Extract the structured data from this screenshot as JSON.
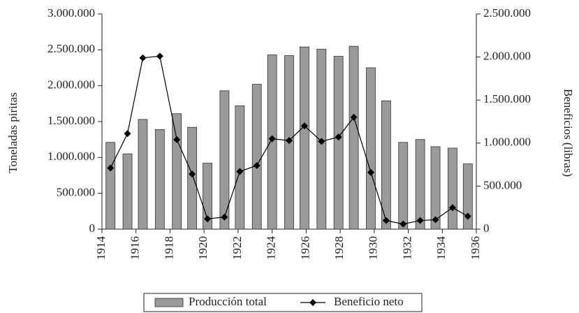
{
  "chart_data": {
    "type": "bar-line",
    "ylabel": "Toneladas piritas",
    "y2label": "Beneficios (libras)",
    "x": [
      1914.5,
      1915.5,
      1916.4,
      1917.4,
      1918.4,
      1919.3,
      1920.2,
      1921.2,
      1922.1,
      1923.1,
      1924.0,
      1925.0,
      1925.9,
      1926.9,
      1927.9,
      1928.8,
      1929.8,
      1930.7,
      1931.7,
      1932.7,
      1933.6,
      1934.6,
      1935.5
    ],
    "series": [
      {
        "name": "Producción total",
        "type": "bar",
        "color": "#9a9a9a",
        "values": [
          1210000,
          1050000,
          1530000,
          1390000,
          1610000,
          1420000,
          920000,
          1930000,
          1720000,
          2020000,
          2430000,
          2420000,
          2540000,
          2510000,
          2410000,
          2550000,
          2250000,
          1790000,
          1210000,
          1250000,
          1150000,
          1130000,
          910000
        ]
      },
      {
        "name": "Beneficio neto",
        "type": "line",
        "axis": "y2",
        "color": "#000000",
        "values": [
          710000,
          1110000,
          1990000,
          2010000,
          1040000,
          640000,
          120000,
          140000,
          670000,
          740000,
          1050000,
          1030000,
          1200000,
          1020000,
          1070000,
          1300000,
          660000,
          100000,
          60000,
          100000,
          110000,
          250000,
          150000
        ]
      }
    ],
    "xlim": [
      1914,
      1936
    ],
    "xticks": [
      1914,
      1916,
      1918,
      1920,
      1922,
      1924,
      1926,
      1928,
      1930,
      1932,
      1934,
      1936
    ],
    "ylim": [
      0,
      3000000
    ],
    "yticks": [
      0,
      {
        "value": 500000,
        "label": "500.000"
      },
      {
        "value": 1000000,
        "label": "1.000.000"
      },
      {
        "value": 1500000,
        "label": "1.500.000"
      },
      {
        "value": 2000000,
        "label": "2.000.000"
      },
      {
        "value": 2500000,
        "label": "2.500.000"
      },
      {
        "value": 3000000,
        "label": "3.000.000"
      }
    ],
    "y2lim": [
      0,
      2500000
    ],
    "y2ticks": [
      0,
      {
        "value": 500000,
        "label": "500.000"
      },
      {
        "value": 1000000,
        "label": "1.000.000"
      },
      {
        "value": 1500000,
        "label": "1.500.000"
      },
      {
        "value": 2000000,
        "label": "2.000.000"
      },
      {
        "value": 2500000,
        "label": "2.500.000"
      }
    ],
    "legend": "bottom"
  }
}
